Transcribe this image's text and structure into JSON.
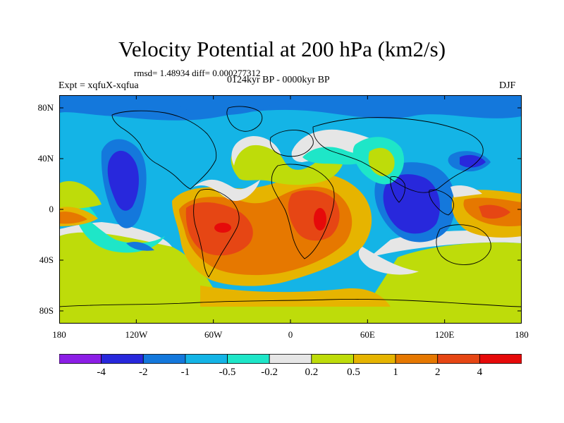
{
  "title": "Velocity Potential at 200 hPa (km2/s)",
  "stats": "rmsd= 1.48934 diff= 0.000277312",
  "period": "0124kyr BP - 0000kyr BP",
  "experiment": "Expt = xqfuX-xqfua",
  "season": "DJF",
  "map": {
    "projection": "cylindrical equidistant",
    "lon_range": [
      -180,
      180
    ],
    "lat_range": [
      -90,
      90
    ],
    "y_ticks": [
      {
        "label": "80N",
        "lat": 80
      },
      {
        "label": "40N",
        "lat": 40
      },
      {
        "label": "0",
        "lat": 0
      },
      {
        "label": "40S",
        "lat": -40
      },
      {
        "label": "80S",
        "lat": -80
      }
    ],
    "x_ticks": [
      {
        "label": "180",
        "lon": -180
      },
      {
        "label": "120W",
        "lon": -120
      },
      {
        "label": "60W",
        "lon": -60
      },
      {
        "label": "0",
        "lon": 0
      },
      {
        "label": "60E",
        "lon": 60
      },
      {
        "label": "120E",
        "lon": 120
      },
      {
        "label": "180",
        "lon": 180
      }
    ]
  },
  "colorbar": {
    "levels": [
      "-4",
      "-2",
      "-1",
      "-0.5",
      "-0.2",
      "0.2",
      "0.5",
      "1",
      "2",
      "4"
    ],
    "colors": [
      "#8c1ee6",
      "#2828dc",
      "#1478dc",
      "#14b4e6",
      "#1ee6c8",
      "#e6e6e6",
      "#bedc0a",
      "#e6b400",
      "#e67800",
      "#e64614",
      "#e60a0a"
    ]
  }
}
